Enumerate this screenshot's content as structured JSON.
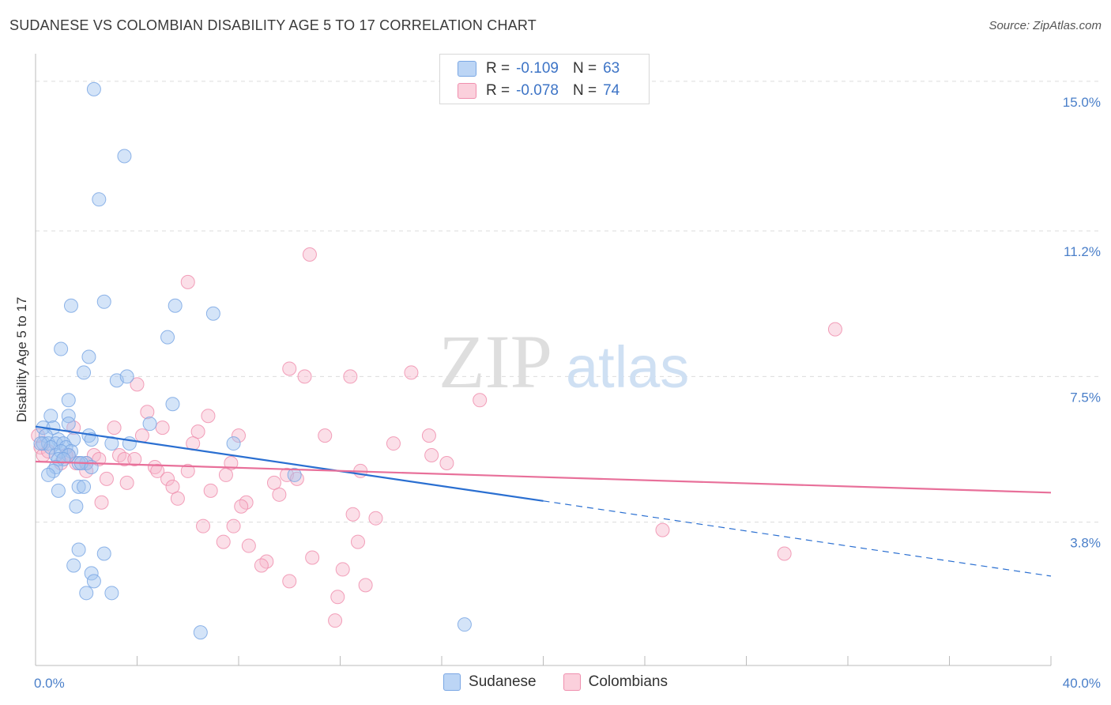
{
  "header": {
    "title": "SUDANESE VS COLOMBIAN DISABILITY AGE 5 TO 17 CORRELATION CHART",
    "source": "Source: ZipAtlas.com"
  },
  "watermark": {
    "left": "ZIP",
    "right": "atlas"
  },
  "legend": {
    "rows": [
      {
        "r_label": "R =",
        "r_value": "-0.109",
        "n_label": "N =",
        "n_value": "63",
        "color": "#a9c8f0"
      },
      {
        "r_label": "R =",
        "r_value": "-0.078",
        "n_label": "N =",
        "n_value": "74",
        "color": "#f7b8cb"
      }
    ]
  },
  "bottom_legend": {
    "items": [
      "Sudanese",
      "Colombians"
    ]
  },
  "chart_data": {
    "type": "scatter",
    "title": "SUDANESE VS COLOMBIAN DISABILITY AGE 5 TO 17 CORRELATION CHART",
    "xlabel": "",
    "ylabel": "Disability Age 5 to 17",
    "xlim": [
      0,
      40
    ],
    "ylim": [
      0.4,
      15.5
    ],
    "x_tick_labels": [
      "0.0%",
      "40.0%"
    ],
    "y_ticks": [
      3.8,
      7.5,
      11.2,
      15.0
    ],
    "y_tick_labels": [
      "3.8%",
      "7.5%",
      "11.2%",
      "15.0%"
    ],
    "grid": "horizontal dashed",
    "legend_position": "top-center",
    "colors": {
      "Sudanese": "#7aa7e4",
      "Colombians": "#f08fae",
      "Sudanese_line": "#2a6fd1",
      "Colombians_line": "#e8709a"
    },
    "series": [
      {
        "name": "Sudanese",
        "r": -0.109,
        "n": 63,
        "trend": {
          "x0": 0,
          "y0": 6.23,
          "x1": 20,
          "y1": 4.34,
          "dashed_to_x": 40,
          "dashed_to_y": 2.43
        },
        "points": [
          [
            2.3,
            14.8
          ],
          [
            3.5,
            13.1
          ],
          [
            2.5,
            12.0
          ],
          [
            1.4,
            9.3
          ],
          [
            2.7,
            9.4
          ],
          [
            5.5,
            9.3
          ],
          [
            7.0,
            9.1
          ],
          [
            5.2,
            8.5
          ],
          [
            1.0,
            8.2
          ],
          [
            2.1,
            8.0
          ],
          [
            1.9,
            7.6
          ],
          [
            3.2,
            7.4
          ],
          [
            3.6,
            7.5
          ],
          [
            1.3,
            6.9
          ],
          [
            5.4,
            6.8
          ],
          [
            0.6,
            6.5
          ],
          [
            1.3,
            6.5
          ],
          [
            4.5,
            6.3
          ],
          [
            1.3,
            6.3
          ],
          [
            0.3,
            6.2
          ],
          [
            0.7,
            6.2
          ],
          [
            0.4,
            6.0
          ],
          [
            2.1,
            6.0
          ],
          [
            0.9,
            5.9
          ],
          [
            1.5,
            5.9
          ],
          [
            2.2,
            5.9
          ],
          [
            0.3,
            5.8
          ],
          [
            0.5,
            5.8
          ],
          [
            0.8,
            5.8
          ],
          [
            1.1,
            5.8
          ],
          [
            3.0,
            5.8
          ],
          [
            7.8,
            5.8
          ],
          [
            3.7,
            5.8
          ],
          [
            0.6,
            5.7
          ],
          [
            1.2,
            5.7
          ],
          [
            1.4,
            5.6
          ],
          [
            0.8,
            5.5
          ],
          [
            1.0,
            5.6
          ],
          [
            1.3,
            5.5
          ],
          [
            0.9,
            5.4
          ],
          [
            1.1,
            5.4
          ],
          [
            2.0,
            5.3
          ],
          [
            1.7,
            5.3
          ],
          [
            0.8,
            5.2
          ],
          [
            1.8,
            5.3
          ],
          [
            0.7,
            5.1
          ],
          [
            0.5,
            5.0
          ],
          [
            2.2,
            5.2
          ],
          [
            10.2,
            5.0
          ],
          [
            1.7,
            4.7
          ],
          [
            1.9,
            4.7
          ],
          [
            0.9,
            4.6
          ],
          [
            1.6,
            4.2
          ],
          [
            1.7,
            3.1
          ],
          [
            2.7,
            3.0
          ],
          [
            1.5,
            2.7
          ],
          [
            2.2,
            2.5
          ],
          [
            2.3,
            2.3
          ],
          [
            2.0,
            2.0
          ],
          [
            3.0,
            2.0
          ],
          [
            6.5,
            1.0
          ],
          [
            16.9,
            1.2
          ],
          [
            0.2,
            5.8
          ]
        ]
      },
      {
        "name": "Colombians",
        "r": -0.078,
        "n": 74,
        "trend": {
          "x0": 0,
          "y0": 5.34,
          "x1": 40,
          "y1": 4.55
        },
        "points": [
          [
            10.8,
            10.6
          ],
          [
            6.0,
            9.9
          ],
          [
            31.5,
            8.7
          ],
          [
            10.0,
            7.7
          ],
          [
            14.8,
            7.6
          ],
          [
            10.6,
            7.5
          ],
          [
            12.4,
            7.5
          ],
          [
            4.0,
            7.3
          ],
          [
            17.5,
            6.9
          ],
          [
            4.4,
            6.6
          ],
          [
            6.8,
            6.5
          ],
          [
            1.5,
            6.2
          ],
          [
            3.1,
            6.2
          ],
          [
            5.0,
            6.2
          ],
          [
            6.4,
            6.1
          ],
          [
            8.0,
            6.0
          ],
          [
            11.4,
            6.0
          ],
          [
            15.5,
            6.0
          ],
          [
            4.2,
            6.0
          ],
          [
            14.1,
            5.8
          ],
          [
            6.2,
            5.8
          ],
          [
            0.2,
            5.7
          ],
          [
            0.3,
            5.5
          ],
          [
            1.3,
            5.5
          ],
          [
            2.3,
            5.5
          ],
          [
            2.5,
            5.4
          ],
          [
            3.3,
            5.5
          ],
          [
            3.5,
            5.4
          ],
          [
            3.9,
            5.4
          ],
          [
            15.6,
            5.5
          ],
          [
            16.2,
            5.3
          ],
          [
            7.7,
            5.3
          ],
          [
            1.0,
            5.3
          ],
          [
            1.6,
            5.3
          ],
          [
            2.0,
            5.3
          ],
          [
            4.7,
            5.2
          ],
          [
            6.0,
            5.1
          ],
          [
            4.8,
            5.1
          ],
          [
            12.8,
            5.1
          ],
          [
            7.5,
            5.0
          ],
          [
            9.9,
            5.0
          ],
          [
            10.3,
            4.9
          ],
          [
            2.8,
            4.9
          ],
          [
            3.6,
            4.8
          ],
          [
            9.4,
            4.8
          ],
          [
            5.2,
            4.9
          ],
          [
            5.4,
            4.7
          ],
          [
            6.9,
            4.6
          ],
          [
            9.6,
            4.5
          ],
          [
            5.6,
            4.4
          ],
          [
            2.6,
            4.3
          ],
          [
            8.3,
            4.3
          ],
          [
            8.1,
            4.2
          ],
          [
            12.5,
            4.0
          ],
          [
            13.4,
            3.9
          ],
          [
            6.6,
            3.7
          ],
          [
            7.8,
            3.7
          ],
          [
            24.7,
            3.6
          ],
          [
            7.4,
            3.3
          ],
          [
            12.7,
            3.3
          ],
          [
            8.4,
            3.2
          ],
          [
            29.5,
            3.0
          ],
          [
            10.9,
            2.9
          ],
          [
            9.1,
            2.8
          ],
          [
            8.9,
            2.7
          ],
          [
            12.1,
            2.6
          ],
          [
            10.0,
            2.3
          ],
          [
            13.0,
            2.2
          ],
          [
            11.9,
            1.9
          ],
          [
            11.8,
            1.3
          ],
          [
            0.1,
            6.0
          ],
          [
            0.5,
            5.6
          ],
          [
            2.0,
            5.1
          ],
          [
            1.2,
            5.5
          ]
        ]
      }
    ]
  }
}
